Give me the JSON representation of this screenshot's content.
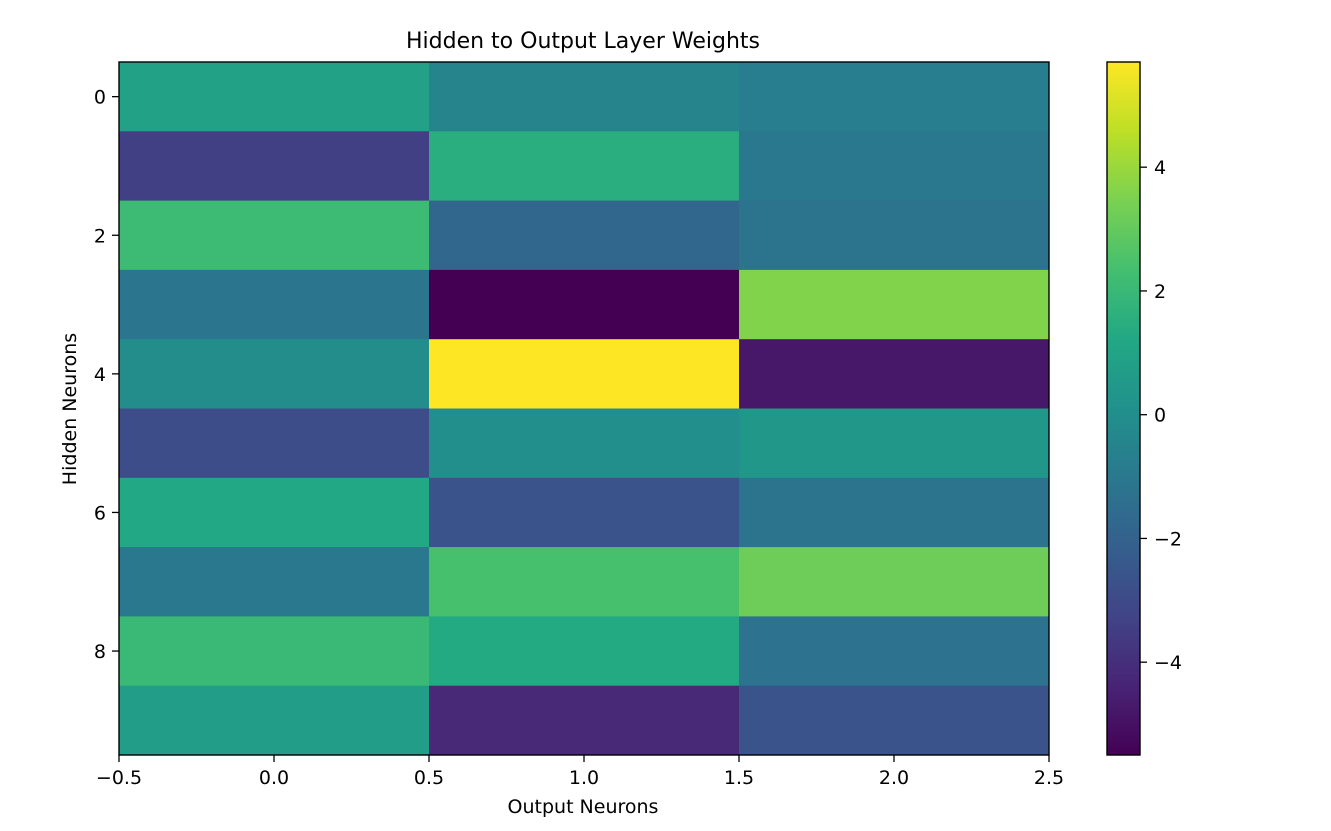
{
  "chart_data": {
    "type": "heatmap",
    "title": "Hidden to Output Layer Weights",
    "xlabel": "Output Neurons",
    "ylabel": "Hidden Neurons",
    "colormap": "viridis",
    "x_ticks": [
      -0.5,
      0.0,
      0.5,
      1.0,
      1.5,
      2.0,
      2.5
    ],
    "x_tick_labels": [
      "−0.5",
      "0.0",
      "0.5",
      "1.0",
      "1.5",
      "2.0",
      "2.5"
    ],
    "xlim": [
      -0.5,
      2.5
    ],
    "y_ticks": [
      0,
      2,
      4,
      6,
      8
    ],
    "y_tick_labels": [
      "0",
      "2",
      "4",
      "6",
      "8"
    ],
    "ylim": [
      9.5,
      -0.5
    ],
    "colorbar": {
      "range": [
        -5.5,
        5.7
      ],
      "ticks": [
        -4,
        -2,
        0,
        2,
        4
      ],
      "tick_labels": [
        "−4",
        "−2",
        "0",
        "2",
        "4"
      ]
    },
    "values": [
      [
        0.9,
        -0.5,
        -0.8
      ],
      [
        -3.4,
        1.5,
        -1.0
      ],
      [
        2.1,
        -1.8,
        -1.2
      ],
      [
        -1.1,
        -5.5,
        3.6
      ],
      [
        -0.1,
        5.7,
        -4.8
      ],
      [
        -2.9,
        0.0,
        0.4
      ],
      [
        1.2,
        -2.6,
        -1.2
      ],
      [
        -1.0,
        2.4,
        3.2
      ],
      [
        2.0,
        1.3,
        -1.3
      ],
      [
        0.7,
        -4.2,
        -2.6
      ]
    ]
  }
}
